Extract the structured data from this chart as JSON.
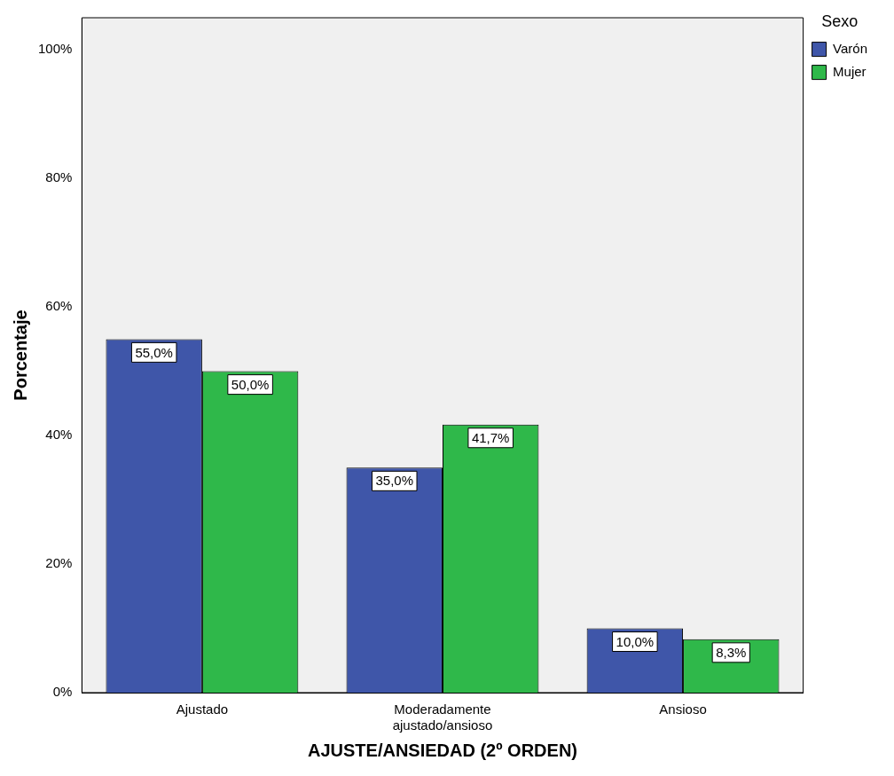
{
  "chart_data": {
    "type": "bar",
    "xlabel": "AJUSTE/ANSIEDAD (2º ORDEN)",
    "ylabel": "Porcentaje",
    "legend_title": "Sexo",
    "legend": "top right",
    "grid": false,
    "categories": [
      "Ajustado",
      "Moderadamente ajustado/ansioso",
      "Ansioso"
    ],
    "series": [
      {
        "name": "Varón",
        "color": "#3f56a9",
        "values": [
          55.0,
          35.0,
          10.0
        ],
        "value_labels": [
          "55,0%",
          "35,0%",
          "10,0%"
        ]
      },
      {
        "name": "Mujer",
        "color": "#2fb84a",
        "values": [
          50.0,
          41.7,
          8.3
        ],
        "value_labels": [
          "50,0%",
          "41,7%",
          "8,3%"
        ]
      }
    ],
    "ylim": [
      0,
      105
    ],
    "yticks": [
      {
        "value": 0,
        "label": "0%"
      },
      {
        "value": 20,
        "label": "20%"
      },
      {
        "value": 40,
        "label": "40%"
      },
      {
        "value": 60,
        "label": "60%"
      },
      {
        "value": 80,
        "label": "80%"
      },
      {
        "value": 100,
        "label": "100%"
      }
    ]
  }
}
